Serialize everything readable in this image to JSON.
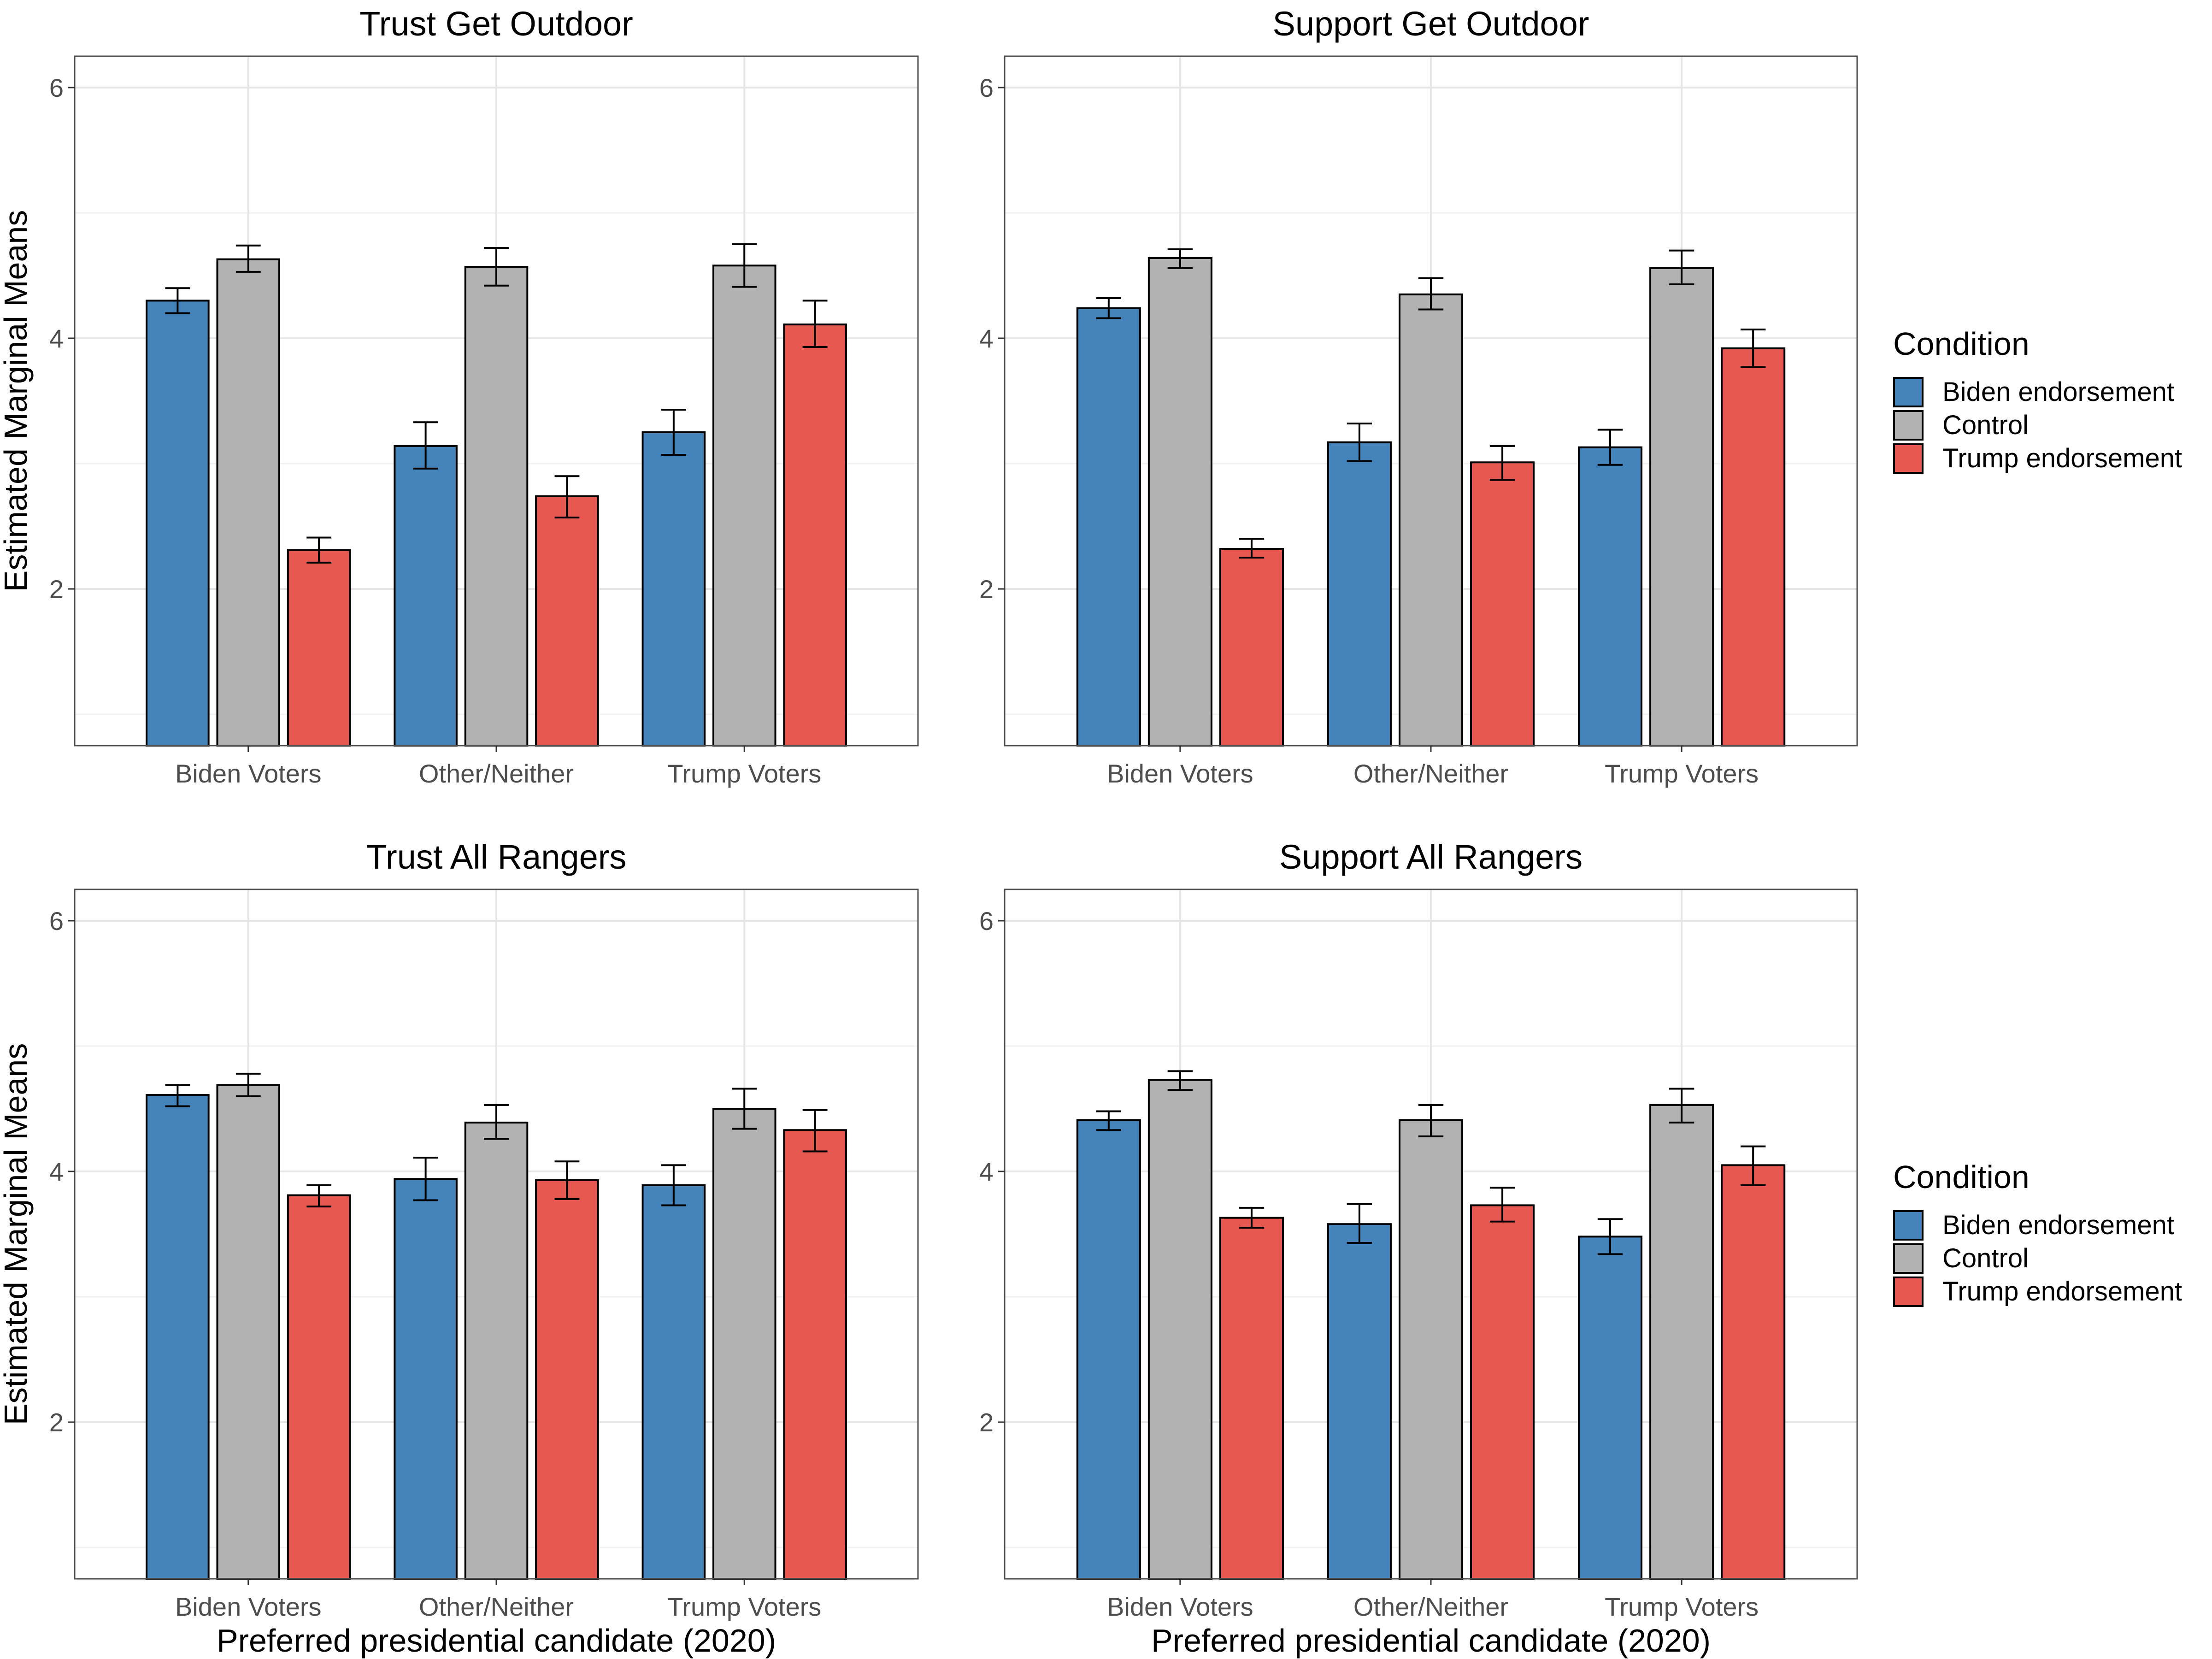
{
  "chart_data": [
    {
      "type": "bar",
      "title": "Trust Get Outdoor",
      "ylabel": "Estimated Marginal Means",
      "xlabel": "",
      "ylim": [
        0.75,
        6.25
      ],
      "yticks": [
        "2",
        "4",
        "6"
      ],
      "categories": [
        "Biden Voters",
        "Other/Neither",
        "Trump Voters"
      ],
      "series": [
        {
          "name": "Biden endorsement",
          "values": [
            4.3,
            3.14,
            3.25
          ],
          "err_low": [
            4.2,
            2.96,
            3.07
          ],
          "err_high": [
            4.4,
            3.33,
            3.43
          ]
        },
        {
          "name": "Control",
          "values": [
            4.63,
            4.57,
            4.58
          ],
          "err_low": [
            4.53,
            4.42,
            4.41
          ],
          "err_high": [
            4.74,
            4.72,
            4.75
          ]
        },
        {
          "name": "Trump endorsement",
          "values": [
            2.31,
            2.74,
            4.11
          ],
          "err_low": [
            2.21,
            2.57,
            3.93
          ],
          "err_high": [
            2.41,
            2.9,
            4.3
          ]
        }
      ]
    },
    {
      "type": "bar",
      "title": "Support Get Outdoor",
      "ylabel": "",
      "xlabel": "",
      "ylim": [
        0.75,
        6.25
      ],
      "yticks": [
        "2",
        "4",
        "6"
      ],
      "categories": [
        "Biden Voters",
        "Other/Neither",
        "Trump Voters"
      ],
      "series": [
        {
          "name": "Biden endorsement",
          "values": [
            4.24,
            3.17,
            3.13
          ],
          "err_low": [
            4.16,
            3.02,
            2.99
          ],
          "err_high": [
            4.32,
            3.32,
            3.27
          ]
        },
        {
          "name": "Control",
          "values": [
            4.64,
            4.35,
            4.56
          ],
          "err_low": [
            4.56,
            4.23,
            4.43
          ],
          "err_high": [
            4.71,
            4.48,
            4.7
          ]
        },
        {
          "name": "Trump endorsement",
          "values": [
            2.32,
            3.01,
            3.92
          ],
          "err_low": [
            2.25,
            2.87,
            3.77
          ],
          "err_high": [
            2.4,
            3.14,
            4.07
          ]
        }
      ]
    },
    {
      "type": "bar",
      "title": "Trust All Rangers",
      "ylabel": "Estimated Marginal Means",
      "xlabel": "Preferred presidential candidate (2020)",
      "ylim": [
        0.75,
        6.25
      ],
      "yticks": [
        "2",
        "4",
        "6"
      ],
      "categories": [
        "Biden Voters",
        "Other/Neither",
        "Trump Voters"
      ],
      "series": [
        {
          "name": "Biden endorsement",
          "values": [
            4.61,
            3.94,
            3.89
          ],
          "err_low": [
            4.52,
            3.77,
            3.73
          ],
          "err_high": [
            4.69,
            4.11,
            4.05
          ]
        },
        {
          "name": "Control",
          "values": [
            4.69,
            4.39,
            4.5
          ],
          "err_low": [
            4.6,
            4.26,
            4.34
          ],
          "err_high": [
            4.78,
            4.53,
            4.66
          ]
        },
        {
          "name": "Trump endorsement",
          "values": [
            3.81,
            3.93,
            4.33
          ],
          "err_low": [
            3.72,
            3.78,
            4.16
          ],
          "err_high": [
            3.89,
            4.08,
            4.49
          ]
        }
      ]
    },
    {
      "type": "bar",
      "title": "Support All Rangers",
      "ylabel": "",
      "xlabel": "Preferred presidential candidate (2020)",
      "ylim": [
        0.75,
        6.25
      ],
      "yticks": [
        "2",
        "4",
        "6"
      ],
      "categories": [
        "Biden Voters",
        "Other/Neither",
        "Trump Voters"
      ],
      "series": [
        {
          "name": "Biden endorsement",
          "values": [
            4.41,
            3.58,
            3.48
          ],
          "err_low": [
            4.33,
            3.43,
            3.34
          ],
          "err_high": [
            4.48,
            3.74,
            3.62
          ]
        },
        {
          "name": "Control",
          "values": [
            4.73,
            4.41,
            4.53
          ],
          "err_low": [
            4.65,
            4.28,
            4.39
          ],
          "err_high": [
            4.8,
            4.53,
            4.66
          ]
        },
        {
          "name": "Trump endorsement",
          "values": [
            3.63,
            3.73,
            4.05
          ],
          "err_low": [
            3.55,
            3.6,
            3.89
          ],
          "err_high": [
            3.71,
            3.87,
            4.2
          ]
        }
      ]
    }
  ],
  "legend": {
    "title": "Condition",
    "items": [
      "Biden endorsement",
      "Control",
      "Trump endorsement"
    ]
  },
  "colors": {
    "Biden endorsement": "#4484bb",
    "Control": "#b2b2b2",
    "Trump endorsement": "#e65850",
    "grid_major": "#e5e5e5",
    "grid_minor": "#f2f2f2",
    "panel_border": "#4d4d4d"
  }
}
